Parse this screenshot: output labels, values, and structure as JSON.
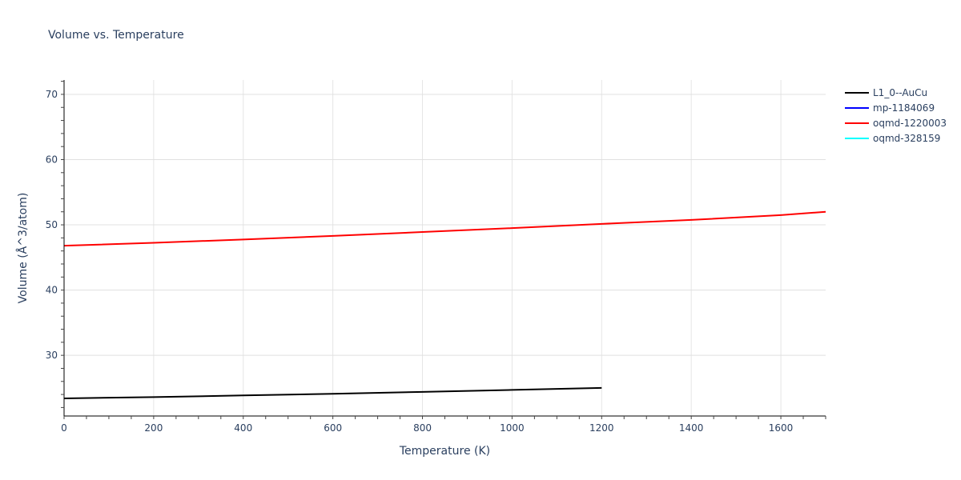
{
  "chart_data": {
    "type": "line",
    "title": "Volume vs. Temperature",
    "xlabel": "Temperature (K)",
    "ylabel": "Volume (Å^3/atom)",
    "xlim": [
      0,
      1700
    ],
    "ylim": [
      20.7,
      72.2
    ],
    "x_ticks": [
      0,
      200,
      400,
      600,
      800,
      1000,
      1200,
      1400,
      1600
    ],
    "y_ticks": [
      30,
      40,
      50,
      60,
      70
    ],
    "grid": true,
    "legend_position": "right",
    "series": [
      {
        "name": "L1_0--AuCu",
        "color": "#000000",
        "x": [
          0,
          200,
          400,
          600,
          800,
          1000,
          1200
        ],
        "y": [
          23.4,
          23.6,
          23.85,
          24.1,
          24.4,
          24.7,
          25.0
        ]
      },
      {
        "name": "mp-1184069",
        "color": "#0000ff",
        "x": [],
        "y": []
      },
      {
        "name": "oqmd-1220003",
        "color": "#ff0000",
        "x": [
          0,
          200,
          400,
          600,
          800,
          1000,
          1200,
          1400,
          1600,
          1700
        ],
        "y": [
          46.8,
          47.25,
          47.75,
          48.3,
          48.9,
          49.5,
          50.15,
          50.75,
          51.5,
          52.0
        ]
      },
      {
        "name": "oqmd-328159",
        "color": "#00ffff",
        "x": [],
        "y": []
      }
    ]
  }
}
